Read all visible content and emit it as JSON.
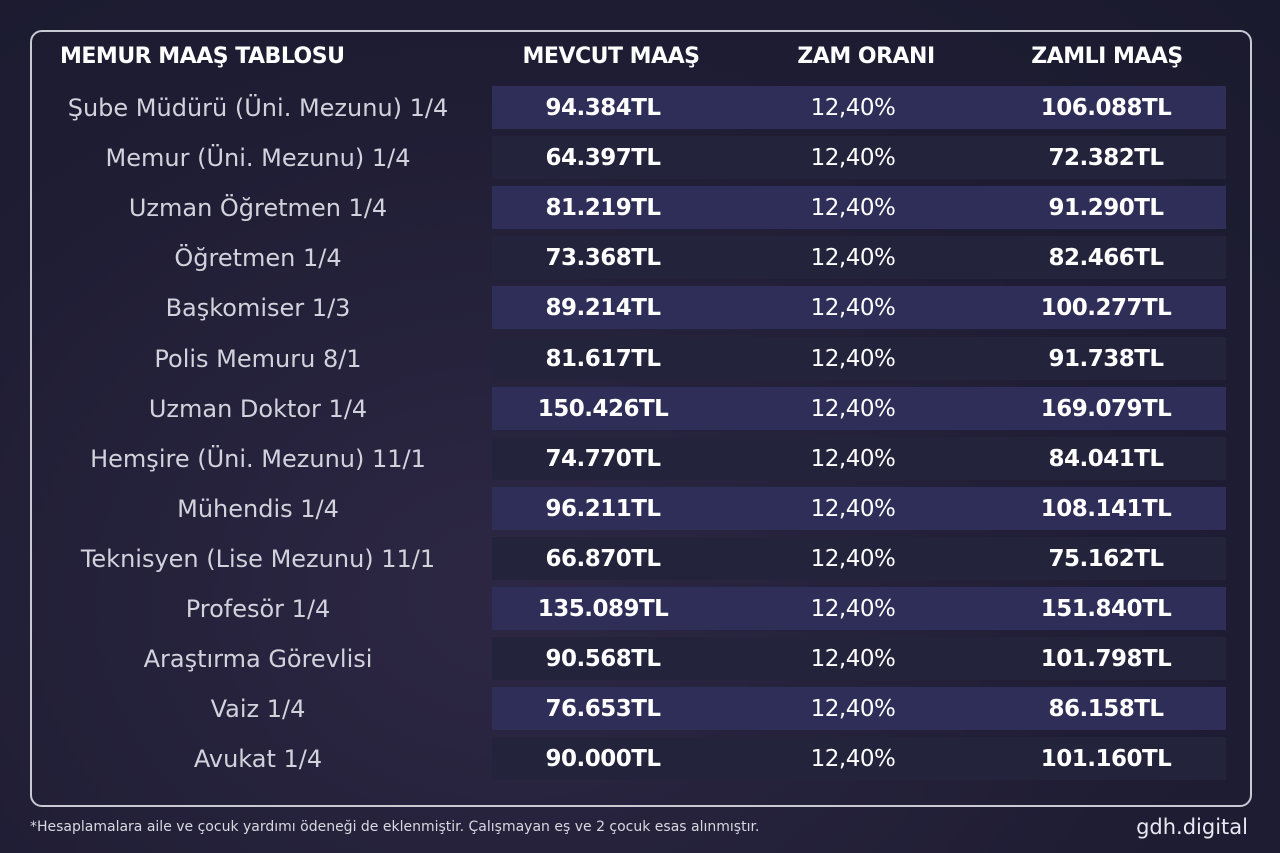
{
  "table": {
    "headers": [
      "MEMUR MAAŞ TABLOSU",
      "MEVCUT MAAŞ",
      "ZAM ORANI",
      "ZAMLI MAAŞ"
    ],
    "rows": [
      [
        "Şube Müdürü (Üni. Mezunu) 1/4",
        "94.384TL",
        "12,40%",
        "106.088TL"
      ],
      [
        "Memur (Üni. Mezunu) 1/4",
        "64.397TL",
        "12,40%",
        "72.382TL"
      ],
      [
        "Uzman Öğretmen 1/4",
        "81.219TL",
        "12,40%",
        "91.290TL"
      ],
      [
        "Öğretmen 1/4",
        "73.368TL",
        "12,40%",
        "82.466TL"
      ],
      [
        "Başkomiser 1/3",
        "89.214TL",
        "12,40%",
        "100.277TL"
      ],
      [
        "Polis Memuru 8/1",
        "81.617TL",
        "12,40%",
        "91.738TL"
      ],
      [
        "Uzman Doktor 1/4",
        "150.426TL",
        "12,40%",
        "169.079TL"
      ],
      [
        "Hemşire (Üni. Mezunu) 11/1",
        "74.770TL",
        "12,40%",
        "84.041TL"
      ],
      [
        "Mühendis 1/4",
        "96.211TL",
        "12,40%",
        "108.141TL"
      ],
      [
        "Teknisyen (Lise Mezunu) 11/1",
        "66.870TL",
        "12,40%",
        "75.162TL"
      ],
      [
        "Profesör 1/4",
        "135.089TL",
        "12,40%",
        "151.840TL"
      ],
      [
        "Araştırma Görevlisi",
        "90.568TL",
        "12,40%",
        "101.798TL"
      ],
      [
        "Vaiz 1/4",
        "76.653TL",
        "12,40%",
        "86.158TL"
      ],
      [
        "Avukat 1/4",
        "90.000TL",
        "12,40%",
        "101.160TL"
      ]
    ]
  },
  "footnote": "*Hesaplamalara aile ve çocuk yardımı ödeneği de eklenmiştir. Çalışmayan eş ve 2 çocuk esas alınmıştır.",
  "brand": "gdh.digital"
}
